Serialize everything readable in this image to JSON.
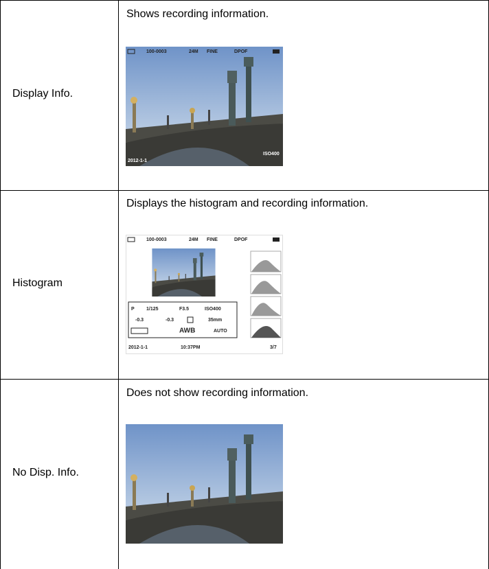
{
  "table": {
    "rows": [
      {
        "mode": "Display Info.",
        "description": "Shows recording information.",
        "screen": {
          "folder": "100-0003",
          "size": "24M",
          "quality": "FINE",
          "print": "DPOF",
          "date": "2012-1-1",
          "iso": "ISO400"
        }
      },
      {
        "mode": "Histogram",
        "description": "Displays the histogram and recording information.",
        "screen": {
          "folder": "100-0003",
          "size": "24M",
          "quality": "FINE",
          "print": "DPOF",
          "mode": "P",
          "shutter": "1/125",
          "aperture": "F3.5",
          "iso": "ISO400",
          "exposure": "-0.3",
          "flash": "-0.3",
          "focal": "35mm",
          "white_balance": "AWB",
          "dro": "AUTO",
          "date": "2012-1-1",
          "time": "10:37PM",
          "count": "3/7"
        }
      },
      {
        "mode": "No Disp. Info.",
        "description": "Does not show recording information."
      }
    ]
  }
}
